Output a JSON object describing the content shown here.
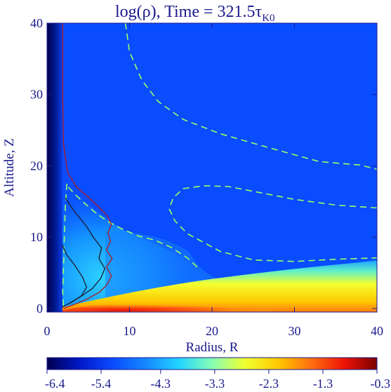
{
  "chart_data": {
    "type": "heatmap",
    "title": {
      "main": "log(ρ), Time =   321.5τ",
      "sub": "K0"
    },
    "xlabel": "Radius, R",
    "ylabel": "Altitude, Z",
    "xlim": [
      0,
      40
    ],
    "ylim": [
      -0.5,
      40
    ],
    "x_ticks": [
      0,
      10,
      20,
      30,
      40
    ],
    "y_ticks": [
      0,
      10,
      20,
      30,
      40
    ],
    "colorbar": {
      "min": -6.4,
      "max": -0.3,
      "ticks": [
        -6.4,
        -5.4,
        -4.3,
        -3.3,
        -2.3,
        -1.3,
        -0.3
      ],
      "colormap": [
        "#000050",
        "#0018c8",
        "#0a4cff",
        "#1688ff",
        "#22d4ff",
        "#86ffb4",
        "#f0ff30",
        "#ffc800",
        "#ff7010",
        "#ee1408",
        "#7a0000"
      ]
    },
    "background_color": "#0a4cff",
    "contours": [
      {
        "name": "dashed-outer",
        "style": "dashed",
        "color": "#9dff6a",
        "points": [
          [
            9.5,
            40
          ],
          [
            10,
            36
          ],
          [
            11.5,
            32
          ],
          [
            13.5,
            29
          ],
          [
            16.5,
            26.5
          ],
          [
            21,
            24.5
          ],
          [
            27,
            22.5
          ],
          [
            33,
            20.6
          ],
          [
            38,
            20.1
          ],
          [
            40,
            19.5
          ]
        ]
      },
      {
        "name": "dashed-outer-lower",
        "style": "dashed",
        "color": "#9dff6a",
        "points": [
          [
            40,
            14.1
          ],
          [
            35,
            14.5
          ],
          [
            30,
            15.3
          ],
          [
            26,
            16.2
          ],
          [
            22,
            17.1
          ],
          [
            19,
            17.2
          ],
          [
            16.5,
            16.8
          ],
          [
            15.3,
            15.5
          ],
          [
            14.8,
            14
          ],
          [
            15.5,
            12.3
          ],
          [
            17,
            10.5
          ],
          [
            21,
            8
          ],
          [
            25,
            6.8
          ],
          [
            30,
            6.6
          ],
          [
            35,
            6.9
          ],
          [
            40,
            7.1
          ]
        ]
      },
      {
        "name": "dashed-disk-edge",
        "style": "dashed",
        "color": "#9dff6a",
        "points": [
          [
            2.6,
            17
          ],
          [
            3.4,
            16
          ],
          [
            4.5,
            14.8
          ],
          [
            6,
            13.3
          ],
          [
            7.5,
            12.1
          ],
          [
            9,
            11.2
          ],
          [
            11,
            10.2
          ],
          [
            13,
            9.6
          ],
          [
            15,
            8.6
          ],
          [
            17,
            7.1
          ],
          [
            18.5,
            5.5
          ]
        ]
      },
      {
        "name": "dashed-inner-left",
        "style": "dashed",
        "color": "#9dff6a",
        "points": [
          [
            2.4,
            17.5
          ],
          [
            2.2,
            14
          ],
          [
            2.1,
            10
          ],
          [
            2,
            6
          ],
          [
            1.9,
            2.5
          ],
          [
            2,
            0
          ]
        ]
      },
      {
        "name": "jet-boundary",
        "style": "solid",
        "color": "#aa1a20",
        "points": [
          [
            1.9,
            40
          ],
          [
            1.9,
            30
          ],
          [
            2.0,
            23
          ],
          [
            2.5,
            19
          ],
          [
            3.6,
            17
          ],
          [
            5,
            15.6
          ],
          [
            6.3,
            14.2
          ],
          [
            7.3,
            13
          ],
          [
            7.8,
            11.8
          ],
          [
            7.4,
            10.6
          ],
          [
            7.7,
            9.4
          ],
          [
            7.2,
            8.2
          ],
          [
            7.9,
            7
          ],
          [
            7.2,
            5.8
          ],
          [
            7.8,
            4.6
          ],
          [
            7.3,
            3.4
          ],
          [
            6.4,
            2.3
          ],
          [
            4.8,
            1.3
          ],
          [
            3.2,
            0.5
          ],
          [
            2,
            0
          ]
        ]
      },
      {
        "name": "inner-dark-1",
        "style": "solid",
        "color": "#1a1a30",
        "points": [
          [
            2.2,
            15.5
          ],
          [
            3.4,
            13.5
          ],
          [
            4.8,
            11.5
          ],
          [
            5.6,
            10
          ],
          [
            6.6,
            8.5
          ],
          [
            6.3,
            7
          ],
          [
            7.0,
            5.6
          ],
          [
            6.5,
            4.2
          ],
          [
            5.5,
            2.8
          ],
          [
            4,
            1.6
          ],
          [
            2.5,
            0.6
          ]
        ]
      },
      {
        "name": "inner-dark-2",
        "style": "solid",
        "color": "#1a1a30",
        "points": [
          [
            1.8,
            9
          ],
          [
            2.4,
            7.5
          ],
          [
            3.4,
            6
          ],
          [
            4.3,
            4.4
          ],
          [
            4.8,
            3
          ],
          [
            4.2,
            1.8
          ],
          [
            3,
            0.9
          ],
          [
            1.8,
            0.2
          ]
        ]
      }
    ]
  }
}
